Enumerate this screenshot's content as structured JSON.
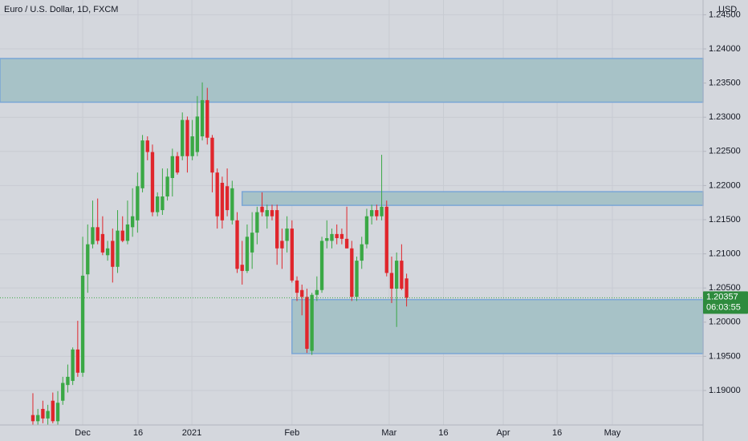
{
  "chart_data": {
    "type": "candlestick",
    "title": "Euro / U.S. Dollar, 1D, FXCM",
    "currency_label": "USD",
    "countdown": "06:03:55",
    "up_color": "#3aa845",
    "down_color": "#e0262c",
    "zone_color": "#a7c2c7",
    "zone_border_color": "#7aa6d6",
    "grid": true,
    "open": [
      1.1864,
      1.1855,
      1.1873,
      1.1859,
      1.1885,
      1.1855,
      1.1885,
      1.1908,
      1.1914,
      1.196,
      1.1926,
      1.207,
      1.2114,
      1.2139,
      1.2129,
      1.2098,
      1.2119,
      1.2081,
      1.2134,
      1.2119,
      1.2139,
      1.2149,
      1.2196,
      1.2266,
      1.2249,
      1.2161,
      1.2164,
      1.2184,
      1.2211,
      1.2243,
      1.2243,
      1.2296,
      1.2243,
      1.2249,
      1.2272,
      1.2325,
      1.227,
      1.2219,
      1.2204,
      1.2199,
      1.2149,
      1.2149,
      1.2084,
      1.2075,
      1.2102,
      1.2131,
      1.2169,
      1.2155,
      1.2164,
      1.2164,
      1.2119,
      1.2119,
      1.2137,
      1.2061,
      1.2047,
      1.2037,
      1.1958,
      1.204,
      1.2047,
      1.2119,
      1.2119,
      1.2129,
      1.2129,
      1.2122,
      1.2108,
      1.2037,
      1.209,
      1.2114,
      1.2155,
      1.2164,
      1.2155,
      1.2169,
      1.2072,
      1.2049,
      1.209,
      1.2064
    ],
    "high": [
      1.1896,
      1.1873,
      1.1885,
      1.1879,
      1.1897,
      1.1899,
      1.192,
      1.1938,
      1.1963,
      1.2002,
      1.2125,
      1.2143,
      1.2178,
      1.2181,
      1.2155,
      1.2119,
      1.2137,
      1.2164,
      1.2155,
      1.2178,
      1.2196,
      1.2219,
      1.2274,
      1.2272,
      1.226,
      1.219,
      1.2225,
      1.2225,
      1.2254,
      1.2249,
      1.2307,
      1.2301,
      1.2296,
      1.2331,
      1.2351,
      1.2343,
      1.2274,
      1.2225,
      1.2213,
      1.2225,
      1.2207,
      1.2161,
      1.2119,
      1.2143,
      1.2161,
      1.2169,
      1.219,
      1.2172,
      1.2172,
      1.2172,
      1.2137,
      1.2155,
      1.2149,
      1.2067,
      1.2055,
      1.2049,
      1.2043,
      1.2067,
      1.2125,
      1.2149,
      1.2137,
      1.2143,
      1.2137,
      1.2169,
      1.2119,
      1.2096,
      1.2125,
      1.2166,
      1.2172,
      1.2172,
      1.2245,
      1.2178,
      1.2096,
      1.2102,
      1.2114,
      1.2071
    ],
    "low": [
      1.1849,
      1.1849,
      1.1852,
      1.1849,
      1.1852,
      1.1849,
      1.1879,
      1.1897,
      1.1908,
      1.192,
      1.192,
      1.2043,
      1.2108,
      1.2114,
      1.2098,
      1.209,
      1.2058,
      1.2072,
      1.2117,
      1.2114,
      1.2125,
      1.2131,
      1.219,
      1.2237,
      1.2155,
      1.2155,
      1.2157,
      1.2178,
      1.2184,
      1.2216,
      1.2237,
      1.2219,
      1.2237,
      1.2243,
      1.2266,
      1.226,
      1.219,
      1.2137,
      1.2137,
      1.2155,
      1.2143,
      1.2072,
      1.2055,
      1.2072,
      1.2078,
      1.2114,
      1.2155,
      1.2137,
      1.2149,
      1.2084,
      1.2078,
      1.2102,
      1.2058,
      1.2031,
      1.201,
      1.1955,
      1.1952,
      1.2031,
      1.2043,
      1.2108,
      1.2108,
      1.2114,
      1.2114,
      1.2108,
      1.2031,
      1.2031,
      1.2078,
      1.2108,
      1.2143,
      1.2149,
      1.2149,
      1.2067,
      1.2028,
      1.1993,
      1.2047,
      1.2023
    ],
    "close": [
      1.1855,
      1.1864,
      1.1859,
      1.187,
      1.1855,
      1.1882,
      1.1911,
      1.192,
      1.196,
      1.1926,
      1.2068,
      1.2114,
      1.2139,
      1.2119,
      1.2102,
      1.2108,
      1.2081,
      1.2134,
      1.2119,
      1.2143,
      1.2155,
      1.2199,
      1.2266,
      1.2249,
      1.2161,
      1.2184,
      1.2184,
      1.2213,
      1.2243,
      1.2219,
      1.2296,
      1.2243,
      1.2272,
      1.2301,
      1.2325,
      1.227,
      1.2219,
      1.2155,
      1.2149,
      1.2164,
      1.2196,
      1.2078,
      1.2075,
      1.2125,
      1.2131,
      1.2161,
      1.2161,
      1.2164,
      1.2155,
      1.2108,
      1.2108,
      1.2137,
      1.2061,
      1.2043,
      1.2037,
      1.1961,
      1.204,
      1.2047,
      1.2119,
      1.2123,
      1.2129,
      1.2123,
      1.2122,
      1.2108,
      1.2037,
      1.209,
      1.2114,
      1.2155,
      1.2164,
      1.2155,
      1.2169,
      1.2072,
      1.2049,
      1.209,
      1.2049,
      1.20357
    ],
    "zones": [
      {
        "top": 1.2386,
        "bottom": 1.2322,
        "start": -6.6
      },
      {
        "top": 1.2191,
        "bottom": 1.2171,
        "start": 42
      },
      {
        "top": 1.2033,
        "bottom": 1.1954,
        "start": 52
      }
    ],
    "xlim": [
      -6.6,
      134.5
    ],
    "xticks": [
      {
        "value": 10,
        "label": "Dec"
      },
      {
        "value": 21.1,
        "label": "16"
      },
      {
        "value": 31.9,
        "label": "2021"
      },
      {
        "value": 52,
        "label": "Feb"
      },
      {
        "value": 71.5,
        "label": "Mar"
      },
      {
        "value": 82.4,
        "label": "16"
      },
      {
        "value": 94.4,
        "label": "Apr"
      },
      {
        "value": 105.2,
        "label": "16"
      },
      {
        "value": 116.3,
        "label": "May"
      }
    ],
    "ylim": [
      1.18495,
      1.24716
    ],
    "yticks": [
      {
        "value": 1.245,
        "label": "1.24500"
      },
      {
        "value": 1.24,
        "label": "1.24000"
      },
      {
        "value": 1.235,
        "label": "1.23500"
      },
      {
        "value": 1.23,
        "label": "1.23000"
      },
      {
        "value": 1.225,
        "label": "1.22500"
      },
      {
        "value": 1.22,
        "label": "1.22000"
      },
      {
        "value": 1.215,
        "label": "1.21500"
      },
      {
        "value": 1.21,
        "label": "1.21000"
      },
      {
        "value": 1.205,
        "label": "1.20500"
      },
      {
        "value": 1.2,
        "label": "1.20000"
      },
      {
        "value": 1.195,
        "label": "1.19500"
      },
      {
        "value": 1.19,
        "label": "1.19000"
      }
    ]
  }
}
